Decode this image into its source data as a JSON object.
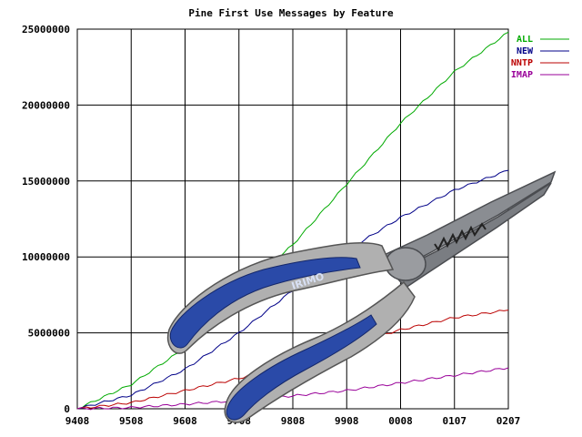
{
  "chart_data": {
    "type": "line",
    "title": "Pine First Use Messages by Feature",
    "xlabel": "",
    "ylabel": "",
    "categories": [
      "9408",
      "9508",
      "9608",
      "9708",
      "9808",
      "9908",
      "0008",
      "0107",
      "0207"
    ],
    "ylim": [
      0,
      25000000
    ],
    "yticks": [
      0,
      5000000,
      10000000,
      15000000,
      20000000,
      25000000
    ],
    "grid": true,
    "legend": "top-right",
    "series": [
      {
        "name": "ALL",
        "color": "#00aa00",
        "values": [
          0,
          1600000,
          4000000,
          7700000,
          10800000,
          14800000,
          18800000,
          22200000,
          24800000
        ]
      },
      {
        "name": "NEW",
        "color": "#000088",
        "values": [
          0,
          900000,
          2600000,
          5000000,
          7800000,
          10400000,
          12600000,
          14400000,
          15700000
        ]
      },
      {
        "name": "NNTP",
        "color": "#bb0000",
        "values": [
          0,
          400000,
          1200000,
          2000000,
          3000000,
          4200000,
          5200000,
          6000000,
          6500000
        ]
      },
      {
        "name": "IMAP",
        "color": "#990099",
        "values": [
          0,
          80000,
          300000,
          550000,
          850000,
          1200000,
          1700000,
          2200000,
          2700000
        ]
      }
    ]
  },
  "overlay": {
    "object": "pliers",
    "brand": "IRIMO",
    "handle_color": "#2a4aa8",
    "grip_color": "#b0b0b0",
    "metal_color": "#8a8d92"
  }
}
